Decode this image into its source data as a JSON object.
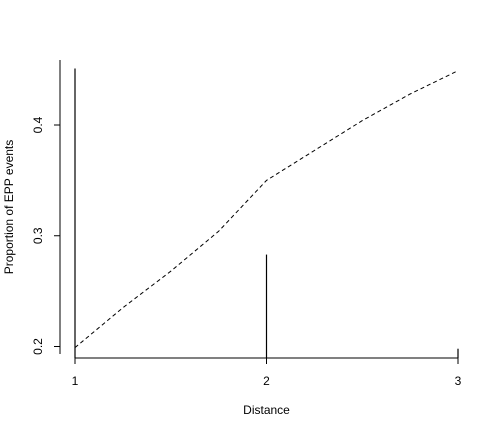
{
  "chart_data": {
    "type": "line",
    "title": "",
    "xlabel": "Distance",
    "ylabel": "Proportion of EPP events",
    "xlim": [
      1,
      3
    ],
    "ylim": [
      0.19,
      0.45
    ],
    "x_ticks": [
      1,
      2,
      3
    ],
    "x_tick_labels": [
      "1",
      "2",
      "3"
    ],
    "y_ticks": [
      0.2,
      0.3,
      0.4
    ],
    "y_tick_labels": [
      "0.2",
      "0.3",
      "0.4"
    ],
    "grid": false,
    "series": [
      {
        "style": "vertical-lines",
        "x": [
          1,
          2,
          3
        ],
        "values": [
          0.451,
          0.283,
          0.198
        ]
      },
      {
        "style": "dashed-line",
        "x": [
          1,
          1.25,
          1.5,
          1.75,
          2,
          2.25,
          2.5,
          2.75,
          3
        ],
        "values": [
          0.199,
          0.235,
          0.268,
          0.304,
          0.35,
          0.377,
          0.404,
          0.428,
          0.449
        ]
      }
    ]
  }
}
